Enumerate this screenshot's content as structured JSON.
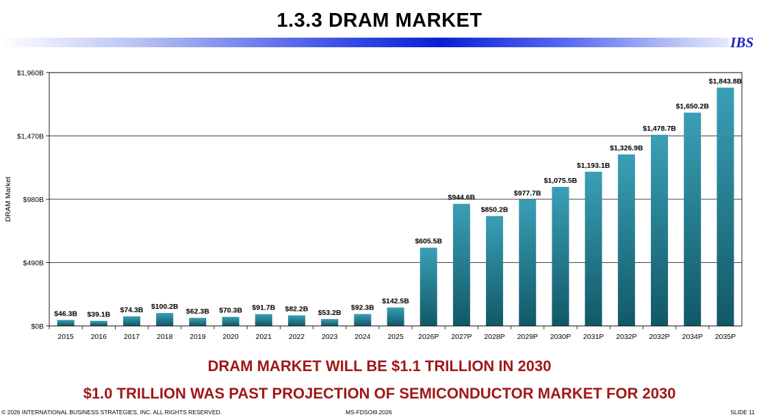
{
  "title": "1.3.3  DRAM MARKET",
  "logo": "IBS",
  "headlines": [
    "DRAM MARKET WILL BE $1.1 TRILLION IN 2030",
    "$1.0 TRILLION WAS PAST PROJECTION OF SEMICONDUCTOR MARKET FOR 2030"
  ],
  "footer": {
    "copyright": "© 2026 INTERNATIONAL BUSINESS STRATEGIES, INC. ALL RIGHTS RESERVED.",
    "doc_id": "MS-FDSOI9.2026",
    "slide": "SLIDE 11"
  },
  "colors": {
    "bar_top": "#3a9fb6",
    "bar_bottom": "#115867",
    "headline": "#a01818",
    "logo": "#1a22c8"
  },
  "chart_data": {
    "type": "bar",
    "title": "",
    "xlabel": "",
    "ylabel": "DRAM Market",
    "ylim": [
      0,
      1960
    ],
    "yticks": [
      0,
      490,
      980,
      1470,
      1960
    ],
    "ytick_labels": [
      "$0B",
      "$490B",
      "$980B",
      "$1,470B",
      "$1,960B"
    ],
    "grid": "horizontal",
    "categories": [
      "2015",
      "2016",
      "2017",
      "2018",
      "2019",
      "2020",
      "2021",
      "2022",
      "2023",
      "2024",
      "2025",
      "2026P",
      "2027P",
      "2028P",
      "2029P",
      "2030P",
      "2031P",
      "2032P",
      "2032P",
      "2034P",
      "2035P"
    ],
    "values": [
      46.3,
      39.1,
      74.3,
      100.2,
      62.3,
      70.3,
      91.7,
      82.2,
      53.2,
      92.3,
      142.5,
      605.5,
      944.6,
      850.2,
      977.7,
      1075.5,
      1193.1,
      1326.9,
      1478.7,
      1650.2,
      1843.8
    ],
    "data_labels": [
      "$46.3B",
      "$39.1B",
      "$74.3B",
      "$100.2B",
      "$62.3B",
      "$70.3B",
      "$91.7B",
      "$82.2B",
      "$53.2B",
      "$92.3B",
      "$142.5B",
      "$605.5B",
      "$944.6B",
      "$850.2B",
      "$977.7B",
      "$1,075.5B",
      "$1,193.1B",
      "$1,326.9B",
      "$1,478.7B",
      "$1,650.2B",
      "$1,843.8B"
    ]
  }
}
